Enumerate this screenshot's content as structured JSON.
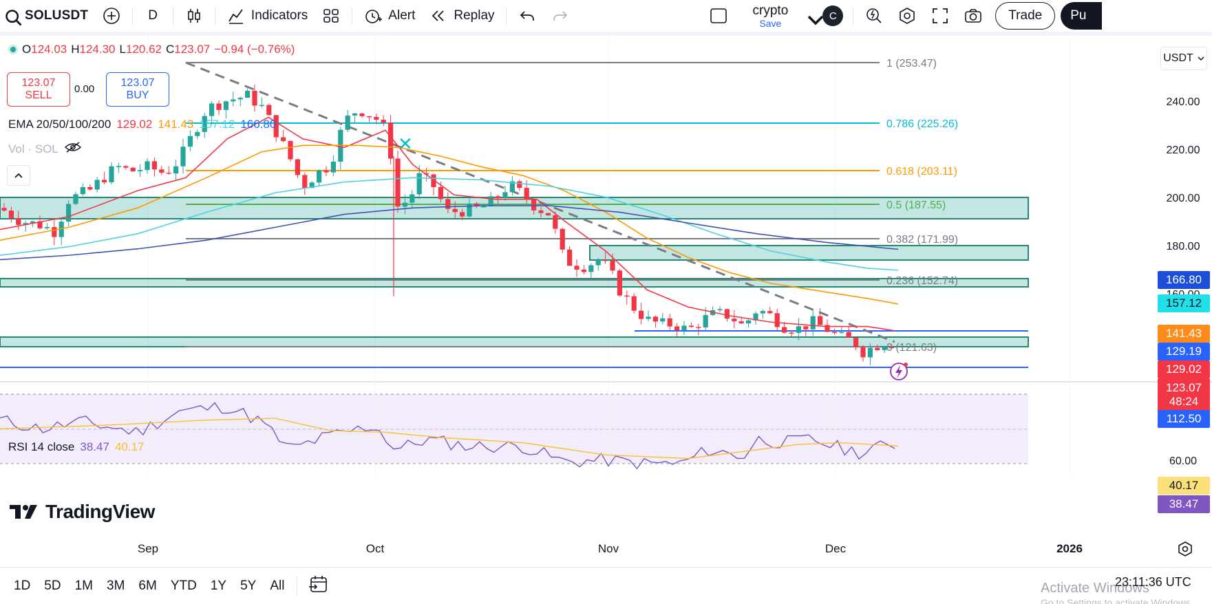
{
  "toolbar": {
    "symbol": "SOLUSDT",
    "interval": "D",
    "indicators_label": "Indicators",
    "alert_label": "Alert",
    "replay_label": "Replay",
    "layout_name": "crypto",
    "layout_save": "Save",
    "avatar_letter": "C",
    "trade_label": "Trade",
    "publish_label": "Pu"
  },
  "legend": {
    "open_label": "O",
    "open": "124.03",
    "high_label": "H",
    "high": "124.30",
    "low_label": "L",
    "low": "120.62",
    "close_label": "C",
    "close": "123.07",
    "change": "−0.94 (−0.76%)",
    "sell_price": "123.07",
    "sell_label": "SELL",
    "spread": "0.00",
    "buy_price": "123.07",
    "buy_label": "BUY",
    "ema_label": "EMA 20/50/100/200",
    "ema20": "129.02",
    "ema50": "141.43",
    "ema100": "157.12",
    "ema200": "166.80",
    "vol_label": "Vol · SOL",
    "rsi_label": "RSI 14 close",
    "rsi_value": "38.47",
    "rsi_ma": "40.17"
  },
  "price_axis": {
    "currency": "USDT",
    "labels": [
      "240.00",
      "220.00",
      "200.00",
      "180.00",
      "160.00"
    ],
    "rsi_labels": [
      "60.00"
    ]
  },
  "price_tags": {
    "ema200": "166.80",
    "ema100": "157.12",
    "ema50": "141.43",
    "blue_level": "129.19",
    "ema20": "129.02",
    "last": "123.07",
    "countdown": "48:24",
    "support": "112.50",
    "rsi_ma": "40.17",
    "rsi": "38.47"
  },
  "fib": {
    "l1": "1 (253.47)",
    "l786": "0.786 (225.26)",
    "l618": "0.618 (203.11)",
    "l5": "0.5 (187.55)",
    "l382": "0.382 (171.99)",
    "l236": "0.236 (152.74)",
    "l0": "0 (121.63)"
  },
  "time_axis": [
    "Sep",
    "Oct",
    "Nov",
    "Dec",
    "2026"
  ],
  "bottom": {
    "ranges": [
      "1D",
      "5D",
      "1M",
      "3M",
      "6M",
      "YTD",
      "1Y",
      "5Y",
      "All"
    ],
    "clock": "23:11:36 UTC",
    "watermark": "Activate Windows",
    "watermark_sub": "Go to Settings to activate Windows."
  },
  "branding": "TradingView",
  "colors": {
    "up": "#26a69a",
    "down": "#f23645",
    "ema20": "#f23645",
    "ema50": "#ff9800",
    "ema100": "#4dd0e1",
    "ema200": "#3f51b5",
    "blue": "#2962ff",
    "rsi": "#7e57c2",
    "rsi_ma": "#fbc02d"
  }
}
